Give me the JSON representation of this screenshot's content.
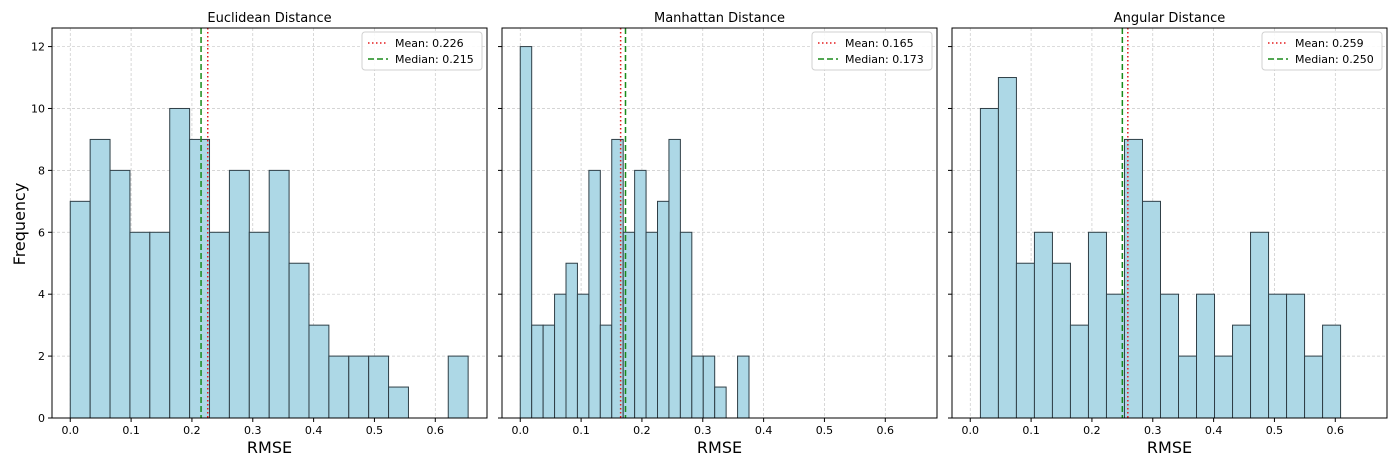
{
  "figure": {
    "ylabel": "Frequency"
  },
  "colors": {
    "bar_fill": "#add8e6",
    "bar_edge": "#2f3f47",
    "mean_line": "#e41a1c",
    "median_line": "#1a8a1a",
    "grid": "#c8c8c8"
  },
  "chart_data": [
    {
      "type": "bar",
      "title": "Euclidean Distance",
      "xlabel": "RMSE",
      "ylabel": "Frequency",
      "xlim": [
        -0.03,
        0.685
      ],
      "ylim": [
        0,
        12.6
      ],
      "xticks": [
        "0.0",
        "0.1",
        "0.2",
        "0.3",
        "0.4",
        "0.5",
        "0.6"
      ],
      "yticks": [
        "0",
        "2",
        "4",
        "6",
        "8",
        "10",
        "12"
      ],
      "grid": true,
      "legend_position": "top-right",
      "bin_start": 0.0,
      "bin_width": 0.0327,
      "counts": [
        7,
        9,
        8,
        6,
        6,
        10,
        9,
        6,
        8,
        6,
        8,
        5,
        3,
        2,
        2,
        2,
        1,
        0,
        0,
        2
      ],
      "mean": 0.226,
      "median": 0.215,
      "mean_label": "Mean: 0.226",
      "median_label": "Median: 0.215"
    },
    {
      "type": "bar",
      "title": "Manhattan Distance",
      "xlabel": "RMSE",
      "ylabel": "Frequency",
      "xlim": [
        -0.03,
        0.685
      ],
      "ylim": [
        0,
        12.6
      ],
      "xticks": [
        "0.0",
        "0.1",
        "0.2",
        "0.3",
        "0.4",
        "0.5",
        "0.6"
      ],
      "yticks": [
        "0",
        "2",
        "4",
        "6",
        "8",
        "10",
        "12"
      ],
      "grid": true,
      "legend_position": "top-right",
      "bin_start": 0.0,
      "bin_width": 0.0188,
      "counts": [
        12,
        3,
        3,
        4,
        5,
        4,
        8,
        3,
        9,
        6,
        8,
        6,
        7,
        9,
        6,
        2,
        2,
        1,
        0,
        2
      ],
      "mean": 0.165,
      "median": 0.173,
      "mean_label": "Mean: 0.165",
      "median_label": "Median: 0.173"
    },
    {
      "type": "bar",
      "title": "Angular Distance",
      "xlabel": "RMSE",
      "ylabel": "Frequency",
      "xlim": [
        -0.03,
        0.685
      ],
      "ylim": [
        0,
        12.6
      ],
      "xticks": [
        "0.0",
        "0.1",
        "0.2",
        "0.3",
        "0.4",
        "0.5",
        "0.6"
      ],
      "yticks": [
        "0",
        "2",
        "4",
        "6",
        "8",
        "10",
        "12"
      ],
      "grid": true,
      "legend_position": "top-right",
      "bin_start": 0.0167,
      "bin_width": 0.0296,
      "counts": [
        10,
        11,
        5,
        6,
        5,
        3,
        6,
        4,
        9,
        7,
        4,
        2,
        4,
        2,
        3,
        6,
        4,
        4,
        2,
        3
      ],
      "mean": 0.259,
      "median": 0.25,
      "mean_label": "Mean: 0.259",
      "median_label": "Median: 0.250"
    }
  ]
}
